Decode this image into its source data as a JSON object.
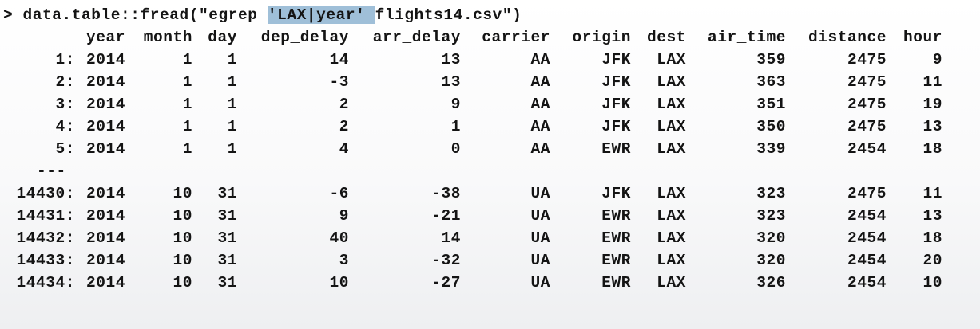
{
  "console": {
    "prompt_symbol": ">",
    "command_before": " data.table::fread(\"egrep ",
    "command_highlight": "'LAX|year' ",
    "command_after": "flights14.csv\")"
  },
  "table": {
    "columns": [
      "year",
      "month",
      "day",
      "dep_delay",
      "arr_delay",
      "carrier",
      "origin",
      "dest",
      "air_time",
      "distance",
      "hour"
    ],
    "ellipsis": "---",
    "rows": [
      {
        "idx": "1:",
        "cells": [
          "2014",
          "1",
          "1",
          "14",
          "13",
          "AA",
          "JFK",
          "LAX",
          "359",
          "2475",
          "9"
        ]
      },
      {
        "idx": "2:",
        "cells": [
          "2014",
          "1",
          "1",
          "-3",
          "13",
          "AA",
          "JFK",
          "LAX",
          "363",
          "2475",
          "11"
        ]
      },
      {
        "idx": "3:",
        "cells": [
          "2014",
          "1",
          "1",
          "2",
          "9",
          "AA",
          "JFK",
          "LAX",
          "351",
          "2475",
          "19"
        ]
      },
      {
        "idx": "4:",
        "cells": [
          "2014",
          "1",
          "1",
          "2",
          "1",
          "AA",
          "JFK",
          "LAX",
          "350",
          "2475",
          "13"
        ]
      },
      {
        "idx": "5:",
        "cells": [
          "2014",
          "1",
          "1",
          "4",
          "0",
          "AA",
          "EWR",
          "LAX",
          "339",
          "2454",
          "18"
        ]
      },
      {
        "idx": "14430:",
        "cells": [
          "2014",
          "10",
          "31",
          "-6",
          "-38",
          "UA",
          "JFK",
          "LAX",
          "323",
          "2475",
          "11"
        ]
      },
      {
        "idx": "14431:",
        "cells": [
          "2014",
          "10",
          "31",
          "9",
          "-21",
          "UA",
          "EWR",
          "LAX",
          "323",
          "2454",
          "13"
        ]
      },
      {
        "idx": "14432:",
        "cells": [
          "2014",
          "10",
          "31",
          "40",
          "14",
          "UA",
          "EWR",
          "LAX",
          "320",
          "2454",
          "18"
        ]
      },
      {
        "idx": "14433:",
        "cells": [
          "2014",
          "10",
          "31",
          "3",
          "-32",
          "UA",
          "EWR",
          "LAX",
          "320",
          "2454",
          "20"
        ]
      },
      {
        "idx": "14434:",
        "cells": [
          "2014",
          "10",
          "31",
          "10",
          "-27",
          "UA",
          "EWR",
          "LAX",
          "326",
          "2454",
          "10"
        ]
      }
    ]
  }
}
